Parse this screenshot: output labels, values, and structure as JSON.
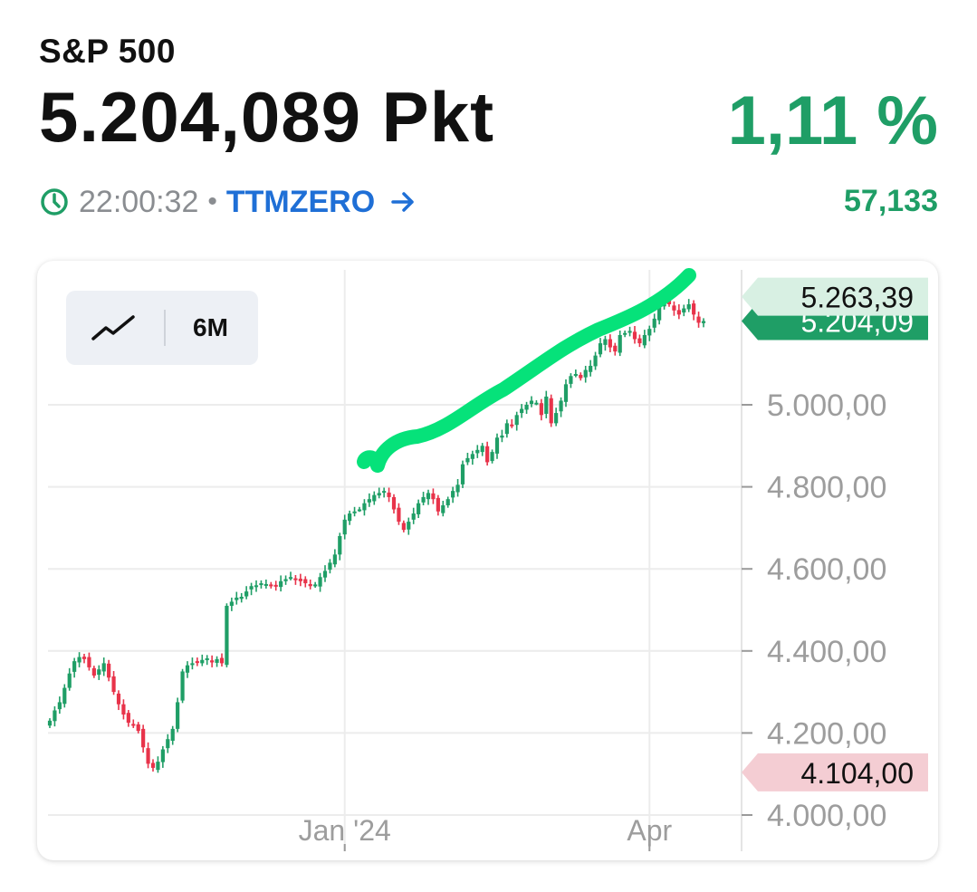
{
  "header": {
    "index_name": "S&P 500",
    "price": "5.204,089 Pkt",
    "change_percent": "1,11 %",
    "time": "22:00:32",
    "separator": "•",
    "source": "TTMZERO",
    "change_absolute": "57,133"
  },
  "toolbar": {
    "chart_type_icon": "line-chart-icon",
    "range": "6M"
  },
  "colors": {
    "up": "#1f9e66",
    "down": "#e8334a",
    "link": "#1f6fd6",
    "highlight_stroke": "#06e27a"
  },
  "chart_data": {
    "type": "candlestick",
    "title": "",
    "xlabel": "",
    "ylabel": "",
    "ylim": [
      3970,
      5360
    ],
    "y_ticks": [
      {
        "value": 4000,
        "label": "4.000,00"
      },
      {
        "value": 4200,
        "label": "4.200,00"
      },
      {
        "value": 4400,
        "label": "4.400,00"
      },
      {
        "value": 4600,
        "label": "4.600,00"
      },
      {
        "value": 4800,
        "label": "4.800,00"
      },
      {
        "value": 5000,
        "label": "5.000,00"
      }
    ],
    "x_ticks": [
      {
        "label": "Jan '24",
        "index": 60
      },
      {
        "label": "Apr",
        "index": 122
      }
    ],
    "grid": true,
    "price_markers": [
      {
        "label": "5.263,39",
        "value": 5263.39,
        "kind": "period-high"
      },
      {
        "label": "5.204,09",
        "value": 5204.09,
        "kind": "current"
      },
      {
        "label": "4.104,00",
        "value": 4104.0,
        "kind": "period-low"
      }
    ],
    "closes": [
      4230,
      4255,
      4275,
      4310,
      4345,
      4375,
      4385,
      4380,
      4360,
      4340,
      4355,
      4370,
      4335,
      4300,
      4270,
      4245,
      4225,
      4220,
      4205,
      4165,
      4125,
      4115,
      4130,
      4160,
      4185,
      4210,
      4275,
      4350,
      4365,
      4370,
      4372,
      4378,
      4382,
      4372,
      4380,
      4370,
      4510,
      4520,
      4530,
      4532,
      4545,
      4558,
      4560,
      4565,
      4563,
      4558,
      4560,
      4570,
      4575,
      4580,
      4575,
      4570,
      4565,
      4558,
      4562,
      4580,
      4595,
      4615,
      4635,
      4680,
      4720,
      4735,
      4740,
      4745,
      4760,
      4770,
      4780,
      4785,
      4790,
      4775,
      4745,
      4715,
      4695,
      4715,
      4735,
      4760,
      4775,
      4785,
      4770,
      4740,
      4755,
      4770,
      4790,
      4805,
      4855,
      4870,
      4880,
      4890,
      4900,
      4860,
      4885,
      4920,
      4925,
      4955,
      4950,
      4975,
      4990,
      5000,
      5010,
      5005,
      4975,
      5020,
      4955,
      4980,
      5010,
      5050,
      5070,
      5075,
      5065,
      5085,
      5095,
      5120,
      5150,
      5160,
      5140,
      5130,
      5170,
      5175,
      5180,
      5160,
      5150,
      5170,
      5185,
      5210,
      5240,
      5250,
      5245,
      5230,
      5220,
      5235,
      5245,
      5220,
      5200,
      5204.09
    ]
  }
}
